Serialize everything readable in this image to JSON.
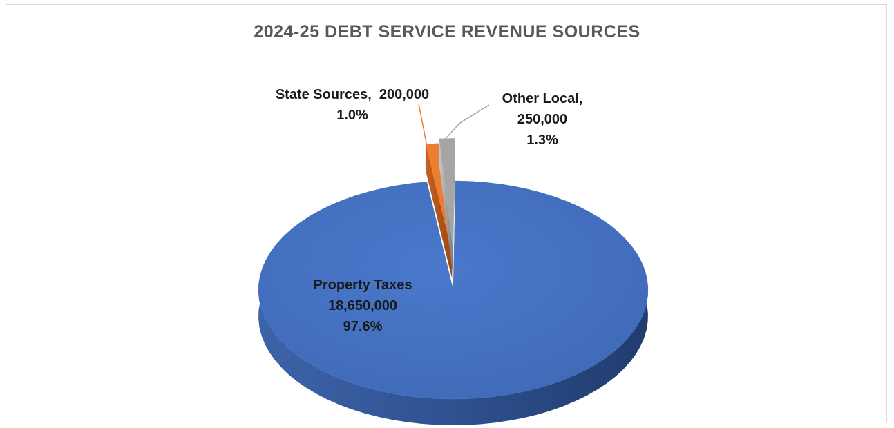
{
  "chart_data": {
    "type": "pie",
    "title": "2024-25 DEBT SERVICE REVENUE SOURCES",
    "slices": [
      {
        "category": "Property Taxes",
        "value": 18650000,
        "value_label": "18,650,000",
        "percent_label": "97.6%",
        "color": "#4472C4"
      },
      {
        "category": "State Sources",
        "value": 200000,
        "value_label": "200,000",
        "percent_label": "1.0%",
        "color": "#ED7D31"
      },
      {
        "category": "Other Local",
        "value": 250000,
        "value_label": "250,000",
        "percent_label": "1.3%",
        "color": "#A5A5A5"
      }
    ],
    "style": "3d-exploded",
    "legend": "none"
  }
}
